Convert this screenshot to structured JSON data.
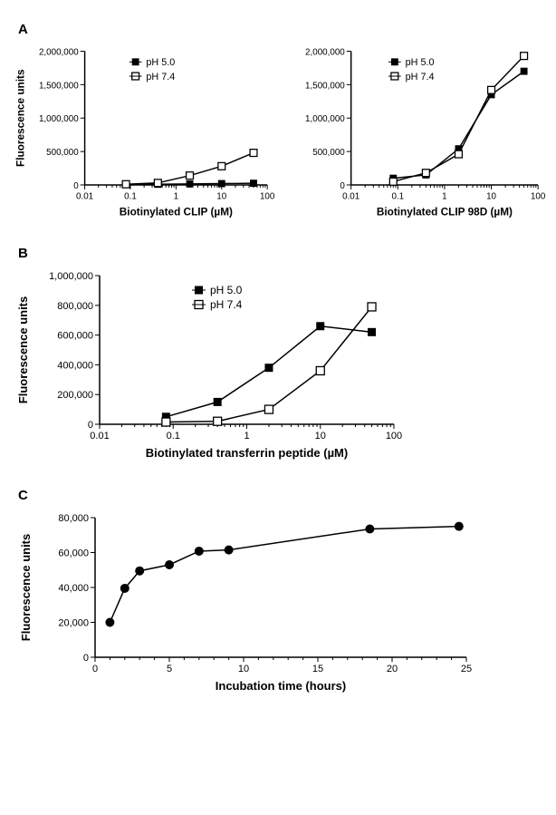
{
  "global": {
    "background": "#ffffff",
    "axis_color": "#000000",
    "line_color": "#000000",
    "label_font": "Arial",
    "label_fontsize": 13,
    "tick_fontsize": 11,
    "panel_label_fontsize": 15,
    "marker_size": 9,
    "line_width": 1.5
  },
  "panelA": {
    "label": "A",
    "legend": {
      "series1": "pH 5.0",
      "series2": "pH 7.4"
    },
    "left": {
      "type": "line-log-x",
      "xlabel": "Biotinylated CLIP (µM)",
      "ylabel": "Fluorescence units",
      "xlim": [
        0.01,
        100
      ],
      "xscale": "log",
      "ylim": [
        0,
        2000000
      ],
      "yticks": [
        0,
        500000,
        1000000,
        1500000,
        2000000
      ],
      "ytick_labels": [
        "0",
        "500,000",
        "1,000,000",
        "1,500,000",
        "2,000,000"
      ],
      "xticks": [
        0.01,
        0.1,
        1,
        10,
        100
      ],
      "xtick_labels": [
        "0.01",
        "0.1",
        "1",
        "10",
        "100"
      ],
      "series": {
        "pH5": {
          "marker": "square-filled",
          "color": "#000000",
          "x": [
            0.08,
            0.4,
            2,
            10,
            50
          ],
          "y": [
            10000,
            10000,
            15000,
            20000,
            25000
          ]
        },
        "pH7": {
          "marker": "square-open",
          "color": "#000000",
          "x": [
            0.08,
            0.4,
            2,
            10,
            50
          ],
          "y": [
            10000,
            30000,
            140000,
            280000,
            480000
          ]
        }
      }
    },
    "right": {
      "type": "line-log-x",
      "xlabel": "Biotinylated CLIP 98D (µM)",
      "ylabel": "",
      "xlim": [
        0.01,
        100
      ],
      "xscale": "log",
      "ylim": [
        0,
        2000000
      ],
      "yticks": [
        0,
        500000,
        1000000,
        1500000,
        2000000
      ],
      "ytick_labels": [
        "0",
        "500,000",
        "1,000,000",
        "1,500,000",
        "2,000,000"
      ],
      "xticks": [
        0.01,
        0.1,
        1,
        10,
        100
      ],
      "xtick_labels": [
        "0.01",
        "0.1",
        "1",
        "10",
        "100"
      ],
      "series": {
        "pH5": {
          "marker": "square-filled",
          "color": "#000000",
          "x": [
            0.08,
            0.4,
            2,
            10,
            50
          ],
          "y": [
            100000,
            150000,
            540000,
            1350000,
            1700000
          ]
        },
        "pH7": {
          "marker": "square-open",
          "color": "#000000",
          "x": [
            0.08,
            0.4,
            2,
            10,
            50
          ],
          "y": [
            50000,
            180000,
            460000,
            1420000,
            1930000
          ]
        }
      }
    }
  },
  "panelB": {
    "label": "B",
    "legend": {
      "series1": "pH 5.0",
      "series2": "pH 7.4"
    },
    "chart": {
      "type": "line-log-x",
      "xlabel": "Biotinylated transferrin peptide (µM)",
      "ylabel": "Fluorescence units",
      "xlim": [
        0.01,
        100
      ],
      "xscale": "log",
      "ylim": [
        0,
        1000000
      ],
      "yticks": [
        0,
        200000,
        400000,
        600000,
        800000,
        1000000
      ],
      "ytick_labels": [
        "0",
        "200,000",
        "400,000",
        "600,000",
        "800,000",
        "1,000,000"
      ],
      "xticks": [
        0.01,
        0.1,
        1,
        10,
        100
      ],
      "xtick_labels": [
        "0.01",
        "0.1",
        "1",
        "10",
        "100"
      ],
      "series": {
        "pH5": {
          "marker": "square-filled",
          "color": "#000000",
          "x": [
            0.08,
            0.4,
            2,
            10,
            50
          ],
          "y": [
            50000,
            150000,
            380000,
            660000,
            620000
          ]
        },
        "pH7": {
          "marker": "square-open",
          "color": "#000000",
          "x": [
            0.08,
            0.4,
            2,
            10,
            50
          ],
          "y": [
            15000,
            20000,
            100000,
            360000,
            790000
          ]
        }
      }
    }
  },
  "panelC": {
    "label": "C",
    "chart": {
      "type": "line",
      "xlabel": "Incubation time (hours)",
      "ylabel": "Fluorescence units",
      "xlim": [
        0,
        25
      ],
      "ylim": [
        0,
        80000
      ],
      "yticks": [
        0,
        20000,
        40000,
        60000,
        80000
      ],
      "ytick_labels": [
        "0",
        "20,000",
        "40,000",
        "60,000",
        "80,000"
      ],
      "xticks": [
        0,
        5,
        10,
        15,
        20,
        25
      ],
      "xtick_labels": [
        "0",
        "5",
        "10",
        "15",
        "20",
        "25"
      ],
      "series": {
        "kinetics": {
          "marker": "circle-filled",
          "color": "#000000",
          "x": [
            1,
            2,
            3,
            5,
            7,
            9,
            18.5,
            24.5
          ],
          "y": [
            20000,
            39500,
            49500,
            53000,
            60800,
            61500,
            73500,
            75000
          ]
        }
      }
    }
  }
}
